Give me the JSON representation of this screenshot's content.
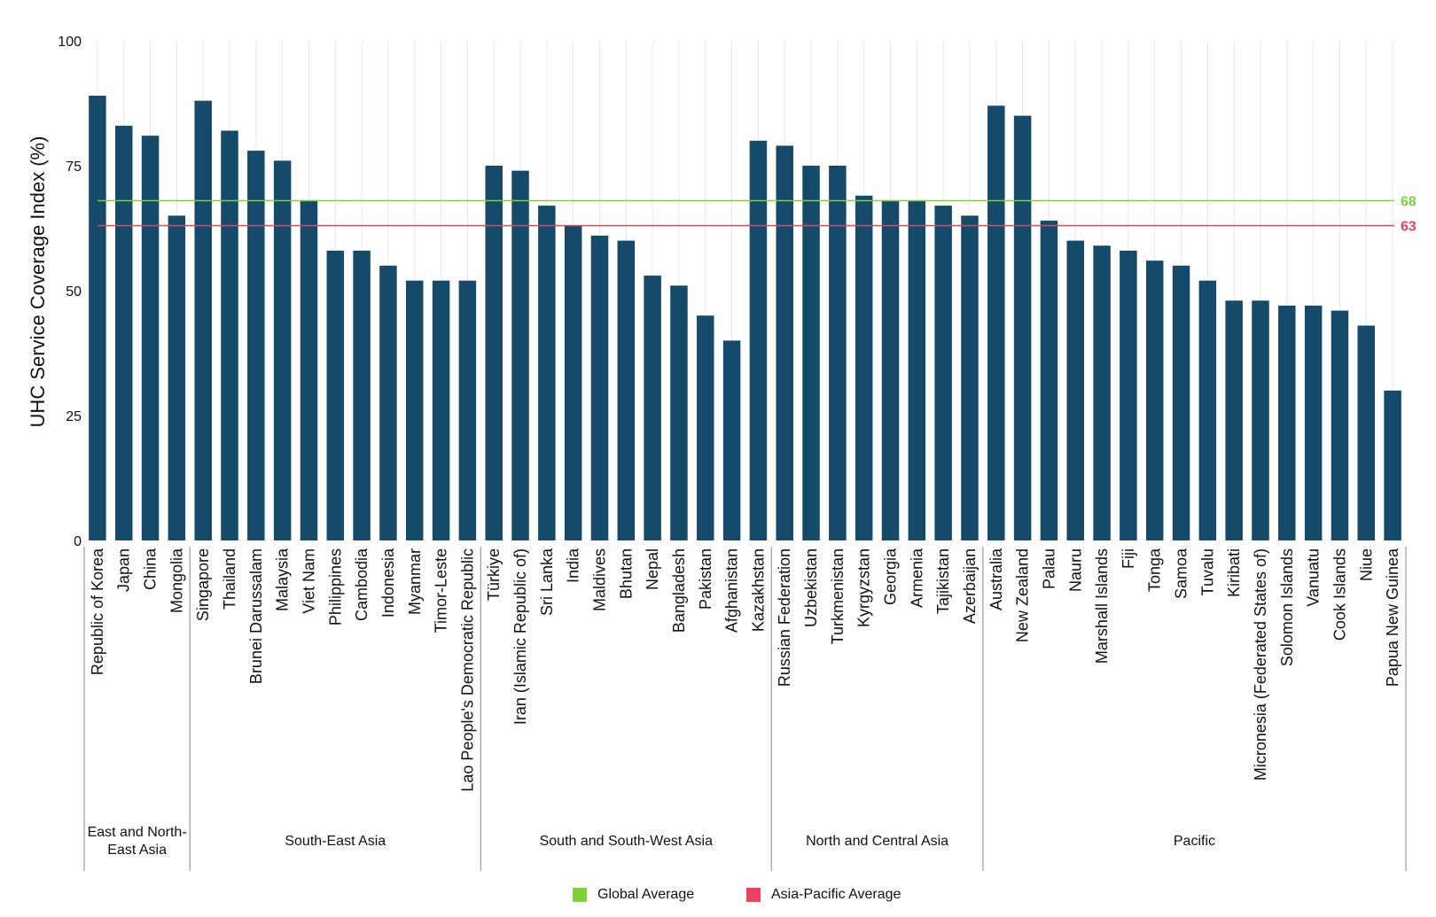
{
  "chart_data": {
    "type": "bar",
    "ylabel": "UHC Service Coverage Index (%)",
    "ylim": [
      0,
      100
    ],
    "yticks": [
      0,
      25,
      50,
      75,
      100
    ],
    "grid": "vertical",
    "bar_color": "#164A6B",
    "categories": [
      "Republic of Korea",
      "Japan",
      "China",
      "Mongolia",
      "Singapore",
      "Thailand",
      "Brunei Darussalam",
      "Malaysia",
      "Viet Nam",
      "Philippines",
      "Cambodia",
      "Indonesia",
      "Myanmar",
      "Timor-Leste",
      "Lao People's Democratic Republic",
      "Türkiye",
      "Iran (Islamic Republic of)",
      "Sri Lanka",
      "India",
      "Maldives",
      "Bhutan",
      "Nepal",
      "Bangladesh",
      "Pakistan",
      "Afghanistan",
      "Kazakhstan",
      "Russian Federation",
      "Uzbekistan",
      "Turkmenistan",
      "Kyrgyzstan",
      "Georgia",
      "Armenia",
      "Tajikistan",
      "Azerbaijan",
      "Australia",
      "New Zealand",
      "Palau",
      "Nauru",
      "Marshall Islands",
      "Fiji",
      "Tonga",
      "Samoa",
      "Tuvalu",
      "Kiribati",
      "Micronesia (Federated States of)",
      "Solomon Islands",
      "Vanuatu",
      "Cook Islands",
      "Niue",
      "Papua New Guinea"
    ],
    "values": [
      89,
      83,
      81,
      65,
      88,
      82,
      78,
      76,
      68,
      58,
      58,
      55,
      52,
      52,
      52,
      75,
      74,
      67,
      63,
      61,
      60,
      53,
      51,
      45,
      40,
      80,
      79,
      75,
      75,
      69,
      68,
      68,
      67,
      65,
      87,
      85,
      64,
      60,
      59,
      58,
      56,
      55,
      52,
      48,
      48,
      47,
      47,
      46,
      43,
      30
    ],
    "groups": [
      {
        "label": "East and North-\nEast Asia",
        "count": 4
      },
      {
        "label": "South-East Asia",
        "count": 11
      },
      {
        "label": "South and South-West Asia",
        "count": 11
      },
      {
        "label": "North and Central Asia",
        "count": 8
      },
      {
        "label": "Pacific",
        "count": 16
      }
    ],
    "reference_lines": [
      {
        "name": "Global Average",
        "value": 68,
        "label": "68",
        "color": "#7FD13B"
      },
      {
        "name": "Asia-Pacific Average",
        "value": 63,
        "label": "63",
        "color": "#E8425E"
      }
    ],
    "legend": {
      "placement": "bottom-center"
    }
  }
}
